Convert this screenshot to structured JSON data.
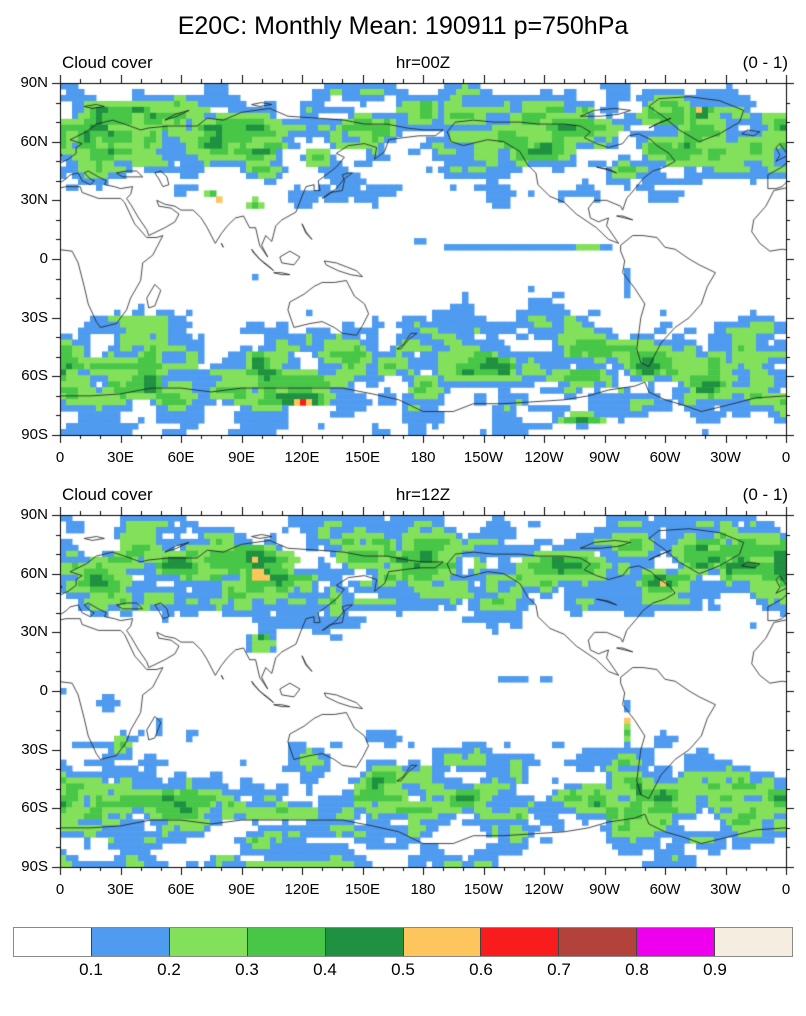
{
  "title": "E20C: Monthly Mean: 190911 p=750hPa",
  "panels": [
    {
      "id": "00Z",
      "left_label": "Cloud cover",
      "center_label": "hr=00Z",
      "right_label": "(0 - 1)",
      "lat_tick_labels": [
        "90N",
        "60N",
        "30N",
        "0",
        "30S",
        "60S",
        "90S"
      ],
      "lon_tick_labels": [
        "0",
        "30E",
        "60E",
        "90E",
        "120E",
        "150E",
        "180",
        "150W",
        "120W",
        "90W",
        "60W",
        "30W",
        "0"
      ]
    },
    {
      "id": "12Z",
      "left_label": "Cloud cover",
      "center_label": "hr=12Z",
      "right_label": "(0 - 1)",
      "lat_tick_labels": [
        "90N",
        "60N",
        "30N",
        "0",
        "30S",
        "60S",
        "90S"
      ],
      "lon_tick_labels": [
        "0",
        "30E",
        "60E",
        "90E",
        "120E",
        "150E",
        "180",
        "150W",
        "120W",
        "90W",
        "60W",
        "30W",
        "0"
      ]
    }
  ],
  "colorbar": {
    "boundary_labels": [
      "0.1",
      "0.2",
      "0.3",
      "0.4",
      "0.5",
      "0.6",
      "0.7",
      "0.8",
      "0.9"
    ],
    "colors": [
      "#ffffff",
      "#4f9bf0",
      "#82e05a",
      "#48c648",
      "#1f9140",
      "#fdc55c",
      "#f91c1c",
      "#b2423a",
      "#ee00ee",
      "#f6ede1"
    ]
  },
  "chart_data": {
    "type": "heatmap",
    "subtype": "filled-contour-world-map",
    "dataset": "E20C",
    "statistic": "Monthly Mean",
    "date": "190911",
    "pressure_level": "p=750hPa",
    "variable": "Cloud cover",
    "units": "(0 - 1)",
    "lon_range": [
      0,
      360
    ],
    "lat_range": [
      -90,
      90
    ],
    "lon_ticks_deg": [
      0,
      30,
      60,
      90,
      120,
      150,
      180,
      210,
      240,
      270,
      300,
      330,
      360
    ],
    "lat_ticks_deg": [
      90,
      60,
      30,
      0,
      -30,
      -60,
      -90
    ],
    "levels": [
      0.1,
      0.2,
      0.3,
      0.4,
      0.5,
      0.6,
      0.7,
      0.8,
      0.9
    ],
    "palette": [
      "#ffffff",
      "#4f9bf0",
      "#82e05a",
      "#48c648",
      "#1f9140",
      "#fdc55c",
      "#f91c1c",
      "#b2423a",
      "#ee00ee",
      "#f6ede1"
    ],
    "panels": [
      {
        "hour": "00Z",
        "seed": 3,
        "zonal_profile": [
          [
            90,
            0.06,
            0.07
          ],
          [
            84,
            0.11,
            0.1
          ],
          [
            78,
            0.17,
            0.12
          ],
          [
            70,
            0.23,
            0.14
          ],
          [
            58,
            0.24,
            0.15
          ],
          [
            48,
            0.16,
            0.12
          ],
          [
            40,
            0.08,
            0.08
          ],
          [
            30,
            0.04,
            0.06
          ],
          [
            22,
            0.02,
            0.04
          ],
          [
            12,
            0.03,
            0.05
          ],
          [
            4,
            0.02,
            0.04
          ],
          [
            -8,
            0.02,
            0.04
          ],
          [
            -20,
            0.03,
            0.05
          ],
          [
            -30,
            0.08,
            0.08
          ],
          [
            -40,
            0.15,
            0.12
          ],
          [
            -50,
            0.22,
            0.14
          ],
          [
            -62,
            0.23,
            0.15
          ],
          [
            -70,
            0.2,
            0.14
          ],
          [
            -76,
            0.12,
            0.1
          ],
          [
            -82,
            0.07,
            0.08
          ],
          [
            -88,
            0.05,
            0.07
          ],
          [
            -90,
            0.06,
            0.07
          ]
        ],
        "features": [
          [
            20,
            63,
            16,
            7,
            0.33
          ],
          [
            90,
            66,
            26,
            9,
            0.38
          ],
          [
            95,
            67,
            10,
            4,
            0.47
          ],
          [
            103,
            63,
            5,
            1.5,
            0.54
          ],
          [
            128,
            52,
            8,
            5,
            0.33
          ],
          [
            150,
            68,
            14,
            6,
            0.36
          ],
          [
            225,
            62,
            20,
            8,
            0.33
          ],
          [
            255,
            67,
            22,
            7,
            0.4
          ],
          [
            252,
            68,
            8,
            3,
            0.5
          ],
          [
            318,
            75,
            7,
            3,
            0.55
          ],
          [
            319,
            75,
            2.5,
            1.2,
            0.65
          ],
          [
            345,
            58,
            12,
            5,
            0.3
          ],
          [
            75,
            33,
            3,
            2,
            0.42
          ],
          [
            79,
            30,
            2,
            1.2,
            0.56
          ],
          [
            97,
            28,
            4,
            3,
            0.33
          ],
          [
            230,
            7,
            55,
            1.8,
            0.17
          ],
          [
            262,
            7,
            12,
            1.5,
            0.3
          ],
          [
            281,
            -12,
            2,
            9,
            0.2
          ],
          [
            287,
            -50,
            3,
            7,
            0.33
          ],
          [
            172,
            -42,
            4,
            3,
            0.3
          ],
          [
            28,
            -55,
            25,
            5,
            0.33
          ],
          [
            115,
            -63,
            30,
            6,
            0.38
          ],
          [
            118,
            -70,
            18,
            4,
            0.46
          ],
          [
            120,
            -72.5,
            9,
            2.2,
            0.67
          ],
          [
            120,
            -72.5,
            13,
            3.2,
            0.55
          ],
          [
            210,
            -60,
            25,
            5,
            0.3
          ],
          [
            258,
            -60,
            18,
            5,
            0.36
          ],
          [
            258,
            -82,
            12,
            3,
            0.44
          ],
          [
            263,
            -84,
            5,
            1,
            0.55
          ],
          [
            320,
            -60,
            20,
            5,
            0.33
          ],
          [
            27,
            -30,
            3,
            3,
            0.28
          ],
          [
            25,
            -87,
            25,
            2,
            0.14
          ]
        ]
      },
      {
        "hour": "12Z",
        "seed": 17,
        "zonal_profile": [
          [
            90,
            0.07,
            0.08
          ],
          [
            84,
            0.12,
            0.1
          ],
          [
            78,
            0.17,
            0.12
          ],
          [
            70,
            0.23,
            0.14
          ],
          [
            58,
            0.24,
            0.15
          ],
          [
            48,
            0.16,
            0.12
          ],
          [
            40,
            0.08,
            0.08
          ],
          [
            30,
            0.04,
            0.06
          ],
          [
            22,
            0.02,
            0.04
          ],
          [
            12,
            0.02,
            0.04
          ],
          [
            4,
            0.02,
            0.04
          ],
          [
            -8,
            0.02,
            0.04
          ],
          [
            -20,
            0.03,
            0.05
          ],
          [
            -30,
            0.08,
            0.08
          ],
          [
            -40,
            0.15,
            0.12
          ],
          [
            -50,
            0.22,
            0.14
          ],
          [
            -62,
            0.22,
            0.14
          ],
          [
            -70,
            0.18,
            0.13
          ],
          [
            -76,
            0.11,
            0.1
          ],
          [
            -82,
            0.07,
            0.08
          ],
          [
            -88,
            0.09,
            0.09
          ],
          [
            -90,
            0.13,
            0.1
          ]
        ],
        "features": [
          [
            20,
            62,
            15,
            7,
            0.33
          ],
          [
            92,
            67,
            26,
            9,
            0.42
          ],
          [
            96,
            68,
            10,
            4,
            0.51
          ],
          [
            150,
            69,
            15,
            6,
            0.36
          ],
          [
            250,
            64,
            24,
            8,
            0.42
          ],
          [
            247,
            66,
            9,
            3,
            0.51
          ],
          [
            283,
            73,
            10,
            4,
            0.4
          ],
          [
            318,
            72,
            5,
            2,
            0.55
          ],
          [
            329,
            78,
            4,
            1.5,
            0.55
          ],
          [
            352,
            55,
            10,
            5,
            0.3
          ],
          [
            100,
            27,
            4,
            3,
            0.45
          ],
          [
            100,
            25,
            8,
            6,
            0.28
          ],
          [
            42,
            43,
            4,
            2,
            0.33
          ],
          [
            22,
            -6,
            8,
            5,
            0.15
          ],
          [
            30,
            -27,
            5,
            6,
            0.33
          ],
          [
            48,
            -18,
            1.5,
            6,
            0.3
          ],
          [
            281,
            -16,
            1.5,
            1,
            0.85
          ],
          [
            281,
            -21,
            2,
            8,
            0.33
          ],
          [
            280,
            -7,
            1.5,
            6,
            0.22
          ],
          [
            288,
            -51,
            3,
            6,
            0.45
          ],
          [
            287,
            -53,
            3,
            1,
            0.55
          ],
          [
            45,
            -55,
            28,
            5,
            0.33
          ],
          [
            110,
            -62,
            25,
            5,
            0.3
          ],
          [
            175,
            -60,
            25,
            5,
            0.33
          ],
          [
            300,
            -60,
            20,
            5,
            0.35
          ],
          [
            340,
            -65,
            15,
            4,
            0.33
          ],
          [
            115,
            -88,
            40,
            2,
            0.27
          ],
          [
            20,
            -89,
            30,
            2,
            0.15
          ],
          [
            230,
            7,
            40,
            1.5,
            0.13
          ],
          [
            155,
            -45,
            8,
            4,
            0.28
          ]
        ]
      }
    ]
  }
}
